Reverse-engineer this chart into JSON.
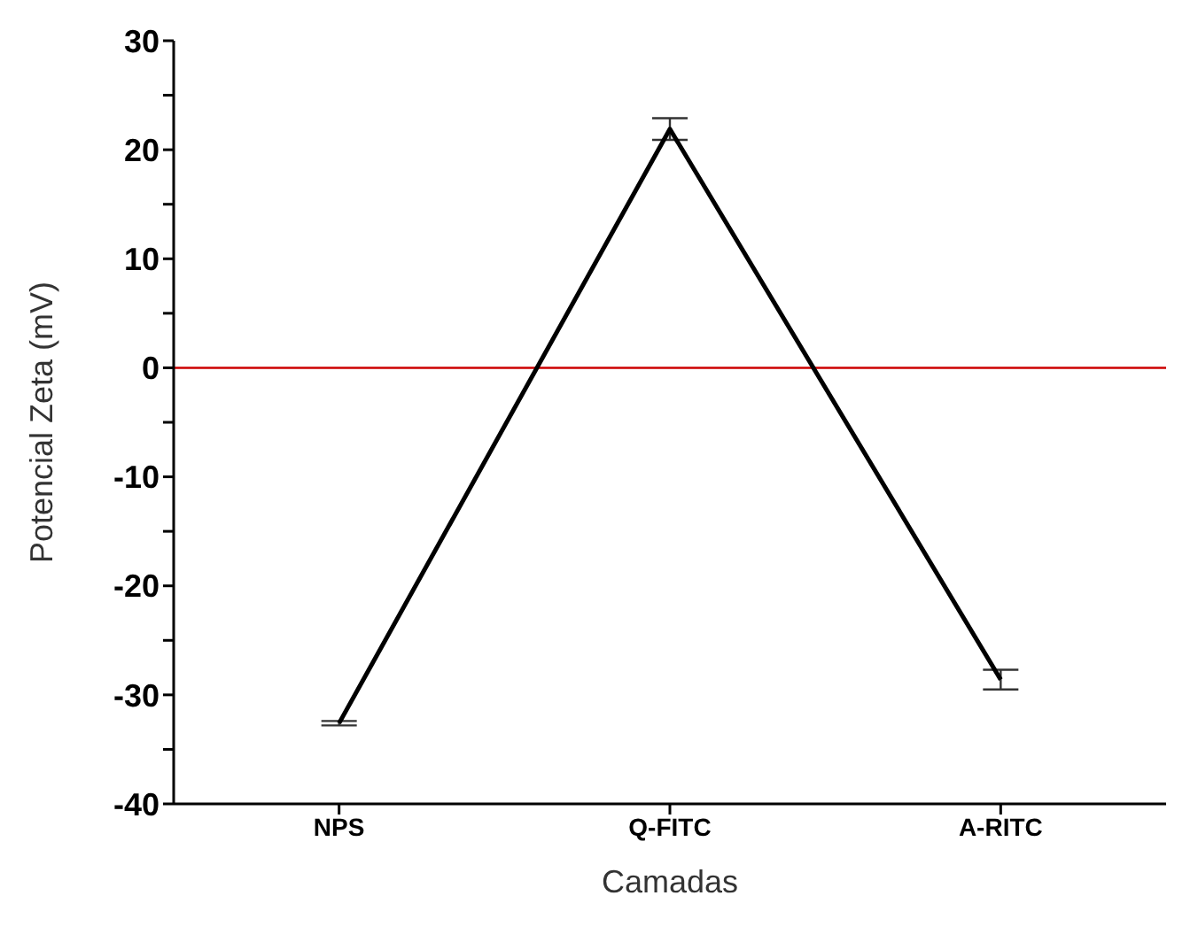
{
  "chart_data": {
    "type": "line",
    "xlabel": "Camadas",
    "ylabel": "Potencial Zeta (mV)",
    "categories": [
      "NPS",
      "Q-FITC",
      "A-RITC"
    ],
    "series": [
      {
        "color": "#000000",
        "values": [
          -32.6,
          21.9,
          -28.6
        ],
        "errors": [
          0.2,
          1,
          0.9
        ]
      }
    ],
    "ylim": [
      -40,
      30
    ],
    "yticks": [
      -40,
      {
        "value": -35,
        "label": null
      },
      -30,
      {
        "value": -25,
        "label": null
      },
      -20,
      {
        "value": -15,
        "label": null
      },
      -10,
      {
        "value": -5,
        "label": null
      },
      0,
      {
        "value": 5,
        "label": null
      },
      10,
      {
        "value": 15,
        "label": null
      },
      20,
      {
        "value": 25,
        "label": null
      },
      30
    ],
    "ref_lines": [
      {
        "axis": "y",
        "value": 0,
        "color": "#cc0000"
      }
    ],
    "grid": false,
    "legend": false,
    "marker": "none",
    "line_style": "solid"
  }
}
